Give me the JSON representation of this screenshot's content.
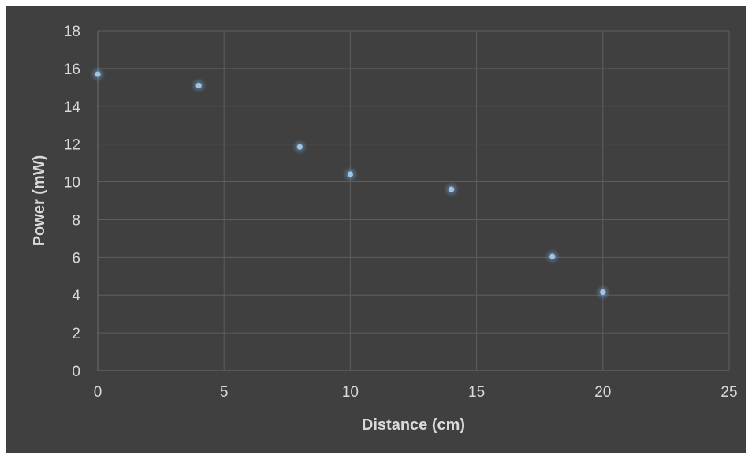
{
  "chart_data": {
    "type": "scatter",
    "title": "",
    "xlabel": "Distance (cm)",
    "ylabel": "Power (mW)",
    "xlim": [
      0,
      25
    ],
    "ylim": [
      0,
      18
    ],
    "x_ticks": [
      0,
      5,
      10,
      15,
      20,
      25
    ],
    "y_ticks": [
      0,
      2,
      4,
      6,
      8,
      10,
      12,
      14,
      16,
      18
    ],
    "grid": true,
    "legend": "none",
    "background_color": "#404040",
    "grid_color": "#5e5e5e",
    "text_color": "#d9d9d9",
    "marker_color": "#9dc3e6",
    "series": [
      {
        "x": [
          0,
          4,
          8,
          10,
          14,
          18,
          20
        ],
        "y": [
          15.7,
          15.1,
          11.85,
          10.4,
          9.6,
          6.05,
          4.15
        ]
      }
    ]
  }
}
